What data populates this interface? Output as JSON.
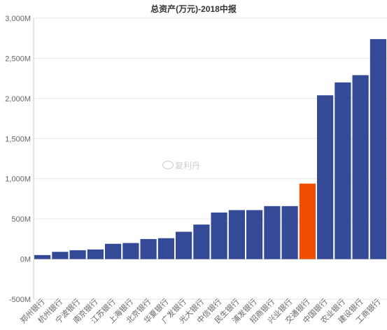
{
  "chart_data": {
    "type": "bar",
    "title": "总资产(万元)-2018中报",
    "categories": [
      "郑州银行",
      "杭州银行",
      "宁波银行",
      "南京银行",
      "江苏银行",
      "上海银行",
      "北京银行",
      "华夏银行",
      "广发银行",
      "光大银行",
      "中信银行",
      "民生银行",
      "浦发银行",
      "招商银行",
      "兴业银行",
      "交通银行",
      "中国银行",
      "农业银行",
      "建设银行",
      "工商银行"
    ],
    "values": [
      50,
      90,
      110,
      120,
      190,
      200,
      250,
      260,
      340,
      430,
      580,
      610,
      610,
      660,
      660,
      940,
      2040,
      2200,
      2290,
      2740
    ],
    "highlight_category": "交通银行",
    "ylim": [
      -500,
      3000
    ],
    "yticks": [
      -500,
      0,
      500,
      1000,
      1500,
      2000,
      2500,
      3000
    ],
    "ytick_labels": [
      "-500M",
      "0M",
      "500M",
      "1,000M",
      "1,500M",
      "2,000M",
      "2,500M",
      "3,000M"
    ],
    "grid": true,
    "colors": {
      "bar": "#344a97",
      "highlight": "#f04e00",
      "grid": "#e6e6e6",
      "axis": "#cccccc"
    }
  },
  "watermark": {
    "text": "复利丹"
  }
}
